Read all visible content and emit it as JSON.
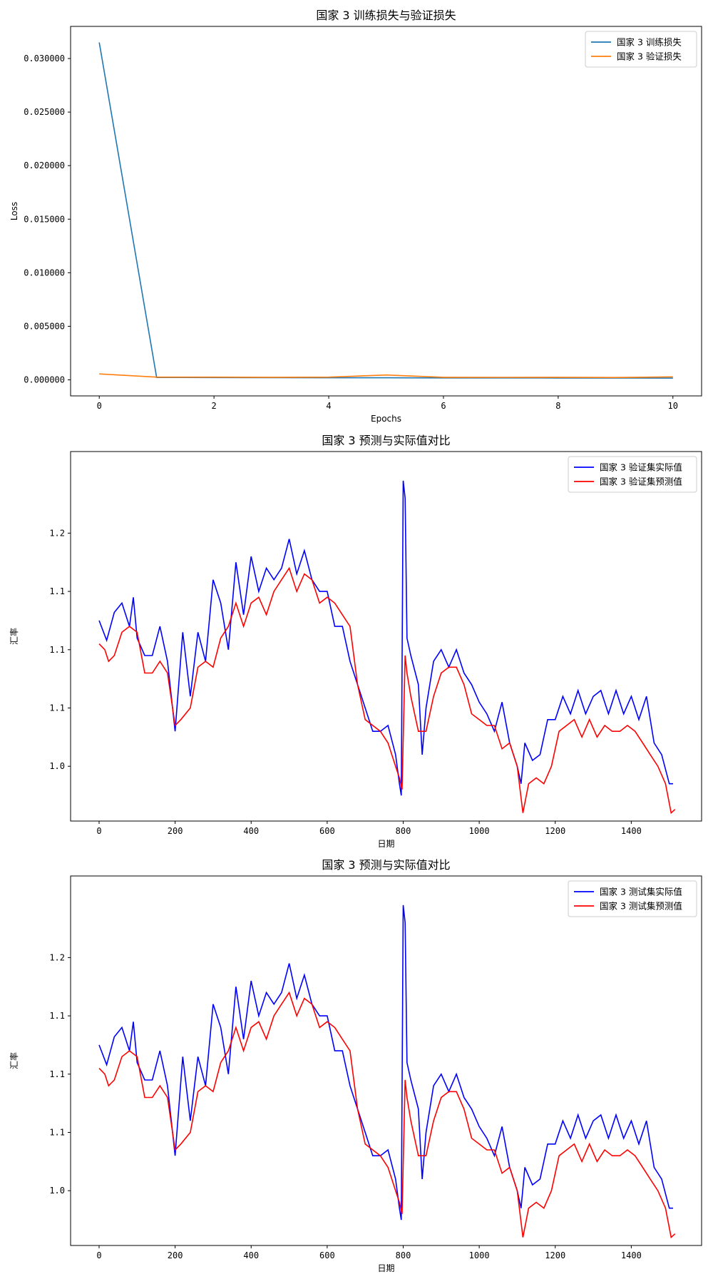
{
  "chart_data": [
    {
      "type": "line",
      "title": "国家 3 训练损失与验证损失",
      "xlabel": "Epochs",
      "ylabel": "Loss",
      "xlim": [
        -0.5,
        10.5
      ],
      "ylim": [
        -0.0015,
        0.033
      ],
      "xticks": [
        0,
        2,
        4,
        6,
        8,
        10
      ],
      "yticks": [
        0.0,
        0.005,
        0.01,
        0.015,
        0.02,
        0.025,
        0.03
      ],
      "ytick_labels": [
        "0.000000",
        "0.005000",
        "0.010000",
        "0.015000",
        "0.020000",
        "0.025000",
        "0.030000"
      ],
      "legend": "top-right",
      "series": [
        {
          "name": "国家 3 训练损失",
          "color": "#1f77b4",
          "x": [
            0,
            1,
            2,
            3,
            4,
            5,
            6,
            7,
            8,
            9,
            10
          ],
          "y": [
            0.0315,
            0.00022,
            0.00021,
            0.0002,
            0.00019,
            0.00019,
            0.00018,
            0.00018,
            0.00017,
            0.00017,
            0.00016
          ]
        },
        {
          "name": "国家 3 验证损失",
          "color": "#ff7f0e",
          "x": [
            0,
            1,
            2,
            3,
            4,
            5,
            6,
            7,
            8,
            9,
            10
          ],
          "y": [
            0.00055,
            0.00025,
            0.00025,
            0.00024,
            0.00025,
            0.00045,
            0.00024,
            0.00023,
            0.00024,
            0.00022,
            0.00028
          ]
        }
      ]
    },
    {
      "type": "line",
      "title": "国家 3 预测与实际值对比",
      "xlabel": "日期",
      "ylabel": "汇率",
      "xlim": [
        -75,
        1585
      ],
      "ylim": [
        0.953,
        1.27
      ],
      "xticks": [
        0,
        200,
        400,
        600,
        800,
        1000,
        1200,
        1400
      ],
      "yticks": [
        1.0,
        1.05,
        1.1,
        1.15,
        1.2
      ],
      "ytick_labels": [
        "1.0",
        "1.1",
        "1.1",
        "1.1",
        "1.2"
      ],
      "legend": "top-right",
      "series": [
        {
          "name": "国家 3 验证集实际值",
          "color": "#0000ff",
          "x": [
            0,
            20,
            40,
            60,
            80,
            90,
            100,
            120,
            140,
            160,
            180,
            200,
            220,
            240,
            260,
            280,
            300,
            320,
            340,
            360,
            380,
            400,
            420,
            440,
            460,
            480,
            500,
            520,
            540,
            560,
            580,
            600,
            620,
            640,
            660,
            680,
            700,
            720,
            740,
            760,
            780,
            790,
            795,
            800,
            805,
            810,
            820,
            840,
            850,
            860,
            880,
            900,
            920,
            940,
            960,
            980,
            1000,
            1020,
            1040,
            1060,
            1080,
            1100,
            1110,
            1120,
            1140,
            1160,
            1180,
            1200,
            1220,
            1240,
            1260,
            1280,
            1300,
            1320,
            1340,
            1360,
            1380,
            1400,
            1420,
            1440,
            1460,
            1480,
            1500,
            1510
          ],
          "y": [
            1.125,
            1.108,
            1.132,
            1.14,
            1.12,
            1.145,
            1.11,
            1.095,
            1.095,
            1.12,
            1.09,
            1.03,
            1.115,
            1.06,
            1.115,
            1.09,
            1.16,
            1.14,
            1.1,
            1.175,
            1.13,
            1.18,
            1.15,
            1.17,
            1.16,
            1.17,
            1.195,
            1.165,
            1.185,
            1.16,
            1.15,
            1.15,
            1.12,
            1.12,
            1.09,
            1.07,
            1.05,
            1.03,
            1.03,
            1.035,
            1.01,
            0.985,
            0.975,
            1.245,
            1.23,
            1.11,
            1.095,
            1.07,
            1.01,
            1.05,
            1.09,
            1.1,
            1.085,
            1.1,
            1.08,
            1.07,
            1.055,
            1.045,
            1.03,
            1.055,
            1.02,
            1.0,
            0.985,
            1.02,
            1.005,
            1.01,
            1.04,
            1.04,
            1.06,
            1.045,
            1.065,
            1.045,
            1.06,
            1.065,
            1.045,
            1.065,
            1.045,
            1.06,
            1.04,
            1.06,
            1.02,
            1.01,
            0.985,
            0.985
          ]
        },
        {
          "name": "国家 3 验证集预测值",
          "color": "#ff0000",
          "x": [
            0,
            15,
            25,
            40,
            60,
            80,
            100,
            120,
            140,
            160,
            180,
            200,
            215,
            240,
            260,
            280,
            300,
            320,
            340,
            360,
            380,
            400,
            420,
            440,
            460,
            480,
            500,
            520,
            540,
            560,
            580,
            600,
            620,
            640,
            660,
            680,
            700,
            720,
            740,
            760,
            780,
            790,
            797,
            805,
            810,
            820,
            840,
            860,
            880,
            900,
            920,
            940,
            960,
            980,
            1000,
            1020,
            1040,
            1060,
            1080,
            1100,
            1115,
            1130,
            1150,
            1170,
            1190,
            1210,
            1230,
            1250,
            1270,
            1290,
            1310,
            1330,
            1350,
            1370,
            1390,
            1410,
            1430,
            1450,
            1470,
            1490,
            1505,
            1515
          ],
          "y": [
            1.105,
            1.1,
            1.09,
            1.095,
            1.115,
            1.12,
            1.115,
            1.08,
            1.08,
            1.09,
            1.08,
            1.035,
            1.04,
            1.05,
            1.085,
            1.09,
            1.085,
            1.11,
            1.12,
            1.14,
            1.12,
            1.14,
            1.145,
            1.13,
            1.15,
            1.16,
            1.17,
            1.15,
            1.165,
            1.16,
            1.14,
            1.145,
            1.14,
            1.13,
            1.12,
            1.07,
            1.04,
            1.035,
            1.03,
            1.02,
            1.0,
            0.99,
            0.98,
            1.095,
            1.08,
            1.06,
            1.03,
            1.03,
            1.06,
            1.08,
            1.085,
            1.085,
            1.07,
            1.045,
            1.04,
            1.035,
            1.035,
            1.015,
            1.02,
            1.0,
            0.96,
            0.985,
            0.99,
            0.985,
            1.0,
            1.03,
            1.035,
            1.04,
            1.025,
            1.04,
            1.025,
            1.035,
            1.03,
            1.03,
            1.035,
            1.03,
            1.02,
            1.01,
            1.0,
            0.985,
            0.96,
            0.963
          ]
        }
      ]
    },
    {
      "type": "line",
      "title": "国家 3 预测与实际值对比",
      "xlabel": "日期",
      "ylabel": "汇率",
      "xlim": [
        -75,
        1585
      ],
      "ylim": [
        0.953,
        1.27
      ],
      "xticks": [
        0,
        200,
        400,
        600,
        800,
        1000,
        1200,
        1400
      ],
      "yticks": [
        1.0,
        1.05,
        1.1,
        1.15,
        1.2
      ],
      "ytick_labels": [
        "1.0",
        "1.1",
        "1.1",
        "1.1",
        "1.2"
      ],
      "legend": "top-right",
      "series": [
        {
          "name": "国家 3 测试集实际值",
          "color": "#0000ff",
          "x": [
            0,
            20,
            40,
            60,
            80,
            90,
            100,
            120,
            140,
            160,
            180,
            200,
            220,
            240,
            260,
            280,
            300,
            320,
            340,
            360,
            380,
            400,
            420,
            440,
            460,
            480,
            500,
            520,
            540,
            560,
            580,
            600,
            620,
            640,
            660,
            680,
            700,
            720,
            740,
            760,
            780,
            790,
            795,
            800,
            805,
            810,
            820,
            840,
            850,
            860,
            880,
            900,
            920,
            940,
            960,
            980,
            1000,
            1020,
            1040,
            1060,
            1080,
            1100,
            1110,
            1120,
            1140,
            1160,
            1180,
            1200,
            1220,
            1240,
            1260,
            1280,
            1300,
            1320,
            1340,
            1360,
            1380,
            1400,
            1420,
            1440,
            1460,
            1480,
            1500,
            1510
          ],
          "y": [
            1.125,
            1.108,
            1.132,
            1.14,
            1.12,
            1.145,
            1.11,
            1.095,
            1.095,
            1.12,
            1.09,
            1.03,
            1.115,
            1.06,
            1.115,
            1.09,
            1.16,
            1.14,
            1.1,
            1.175,
            1.13,
            1.18,
            1.15,
            1.17,
            1.16,
            1.17,
            1.195,
            1.165,
            1.185,
            1.16,
            1.15,
            1.15,
            1.12,
            1.12,
            1.09,
            1.07,
            1.05,
            1.03,
            1.03,
            1.035,
            1.01,
            0.985,
            0.975,
            1.245,
            1.23,
            1.11,
            1.095,
            1.07,
            1.01,
            1.05,
            1.09,
            1.1,
            1.085,
            1.1,
            1.08,
            1.07,
            1.055,
            1.045,
            1.03,
            1.055,
            1.02,
            1.0,
            0.985,
            1.02,
            1.005,
            1.01,
            1.04,
            1.04,
            1.06,
            1.045,
            1.065,
            1.045,
            1.06,
            1.065,
            1.045,
            1.065,
            1.045,
            1.06,
            1.04,
            1.06,
            1.02,
            1.01,
            0.985,
            0.985
          ]
        },
        {
          "name": "国家 3 测试集预测值",
          "color": "#ff0000",
          "x": [
            0,
            15,
            25,
            40,
            60,
            80,
            100,
            120,
            140,
            160,
            180,
            200,
            215,
            240,
            260,
            280,
            300,
            320,
            340,
            360,
            380,
            400,
            420,
            440,
            460,
            480,
            500,
            520,
            540,
            560,
            580,
            600,
            620,
            640,
            660,
            680,
            700,
            720,
            740,
            760,
            780,
            790,
            797,
            805,
            810,
            820,
            840,
            860,
            880,
            900,
            920,
            940,
            960,
            980,
            1000,
            1020,
            1040,
            1060,
            1080,
            1100,
            1115,
            1130,
            1150,
            1170,
            1190,
            1210,
            1230,
            1250,
            1270,
            1290,
            1310,
            1330,
            1350,
            1370,
            1390,
            1410,
            1430,
            1450,
            1470,
            1490,
            1505,
            1515
          ],
          "y": [
            1.105,
            1.1,
            1.09,
            1.095,
            1.115,
            1.12,
            1.115,
            1.08,
            1.08,
            1.09,
            1.08,
            1.035,
            1.04,
            1.05,
            1.085,
            1.09,
            1.085,
            1.11,
            1.12,
            1.14,
            1.12,
            1.14,
            1.145,
            1.13,
            1.15,
            1.16,
            1.17,
            1.15,
            1.165,
            1.16,
            1.14,
            1.145,
            1.14,
            1.13,
            1.12,
            1.07,
            1.04,
            1.035,
            1.03,
            1.02,
            1.0,
            0.99,
            0.98,
            1.095,
            1.08,
            1.06,
            1.03,
            1.03,
            1.06,
            1.08,
            1.085,
            1.085,
            1.07,
            1.045,
            1.04,
            1.035,
            1.035,
            1.015,
            1.02,
            1.0,
            0.96,
            0.985,
            0.99,
            0.985,
            1.0,
            1.03,
            1.035,
            1.04,
            1.025,
            1.04,
            1.025,
            1.035,
            1.03,
            1.03,
            1.035,
            1.03,
            1.02,
            1.01,
            1.0,
            0.985,
            0.96,
            0.963
          ]
        }
      ]
    }
  ]
}
